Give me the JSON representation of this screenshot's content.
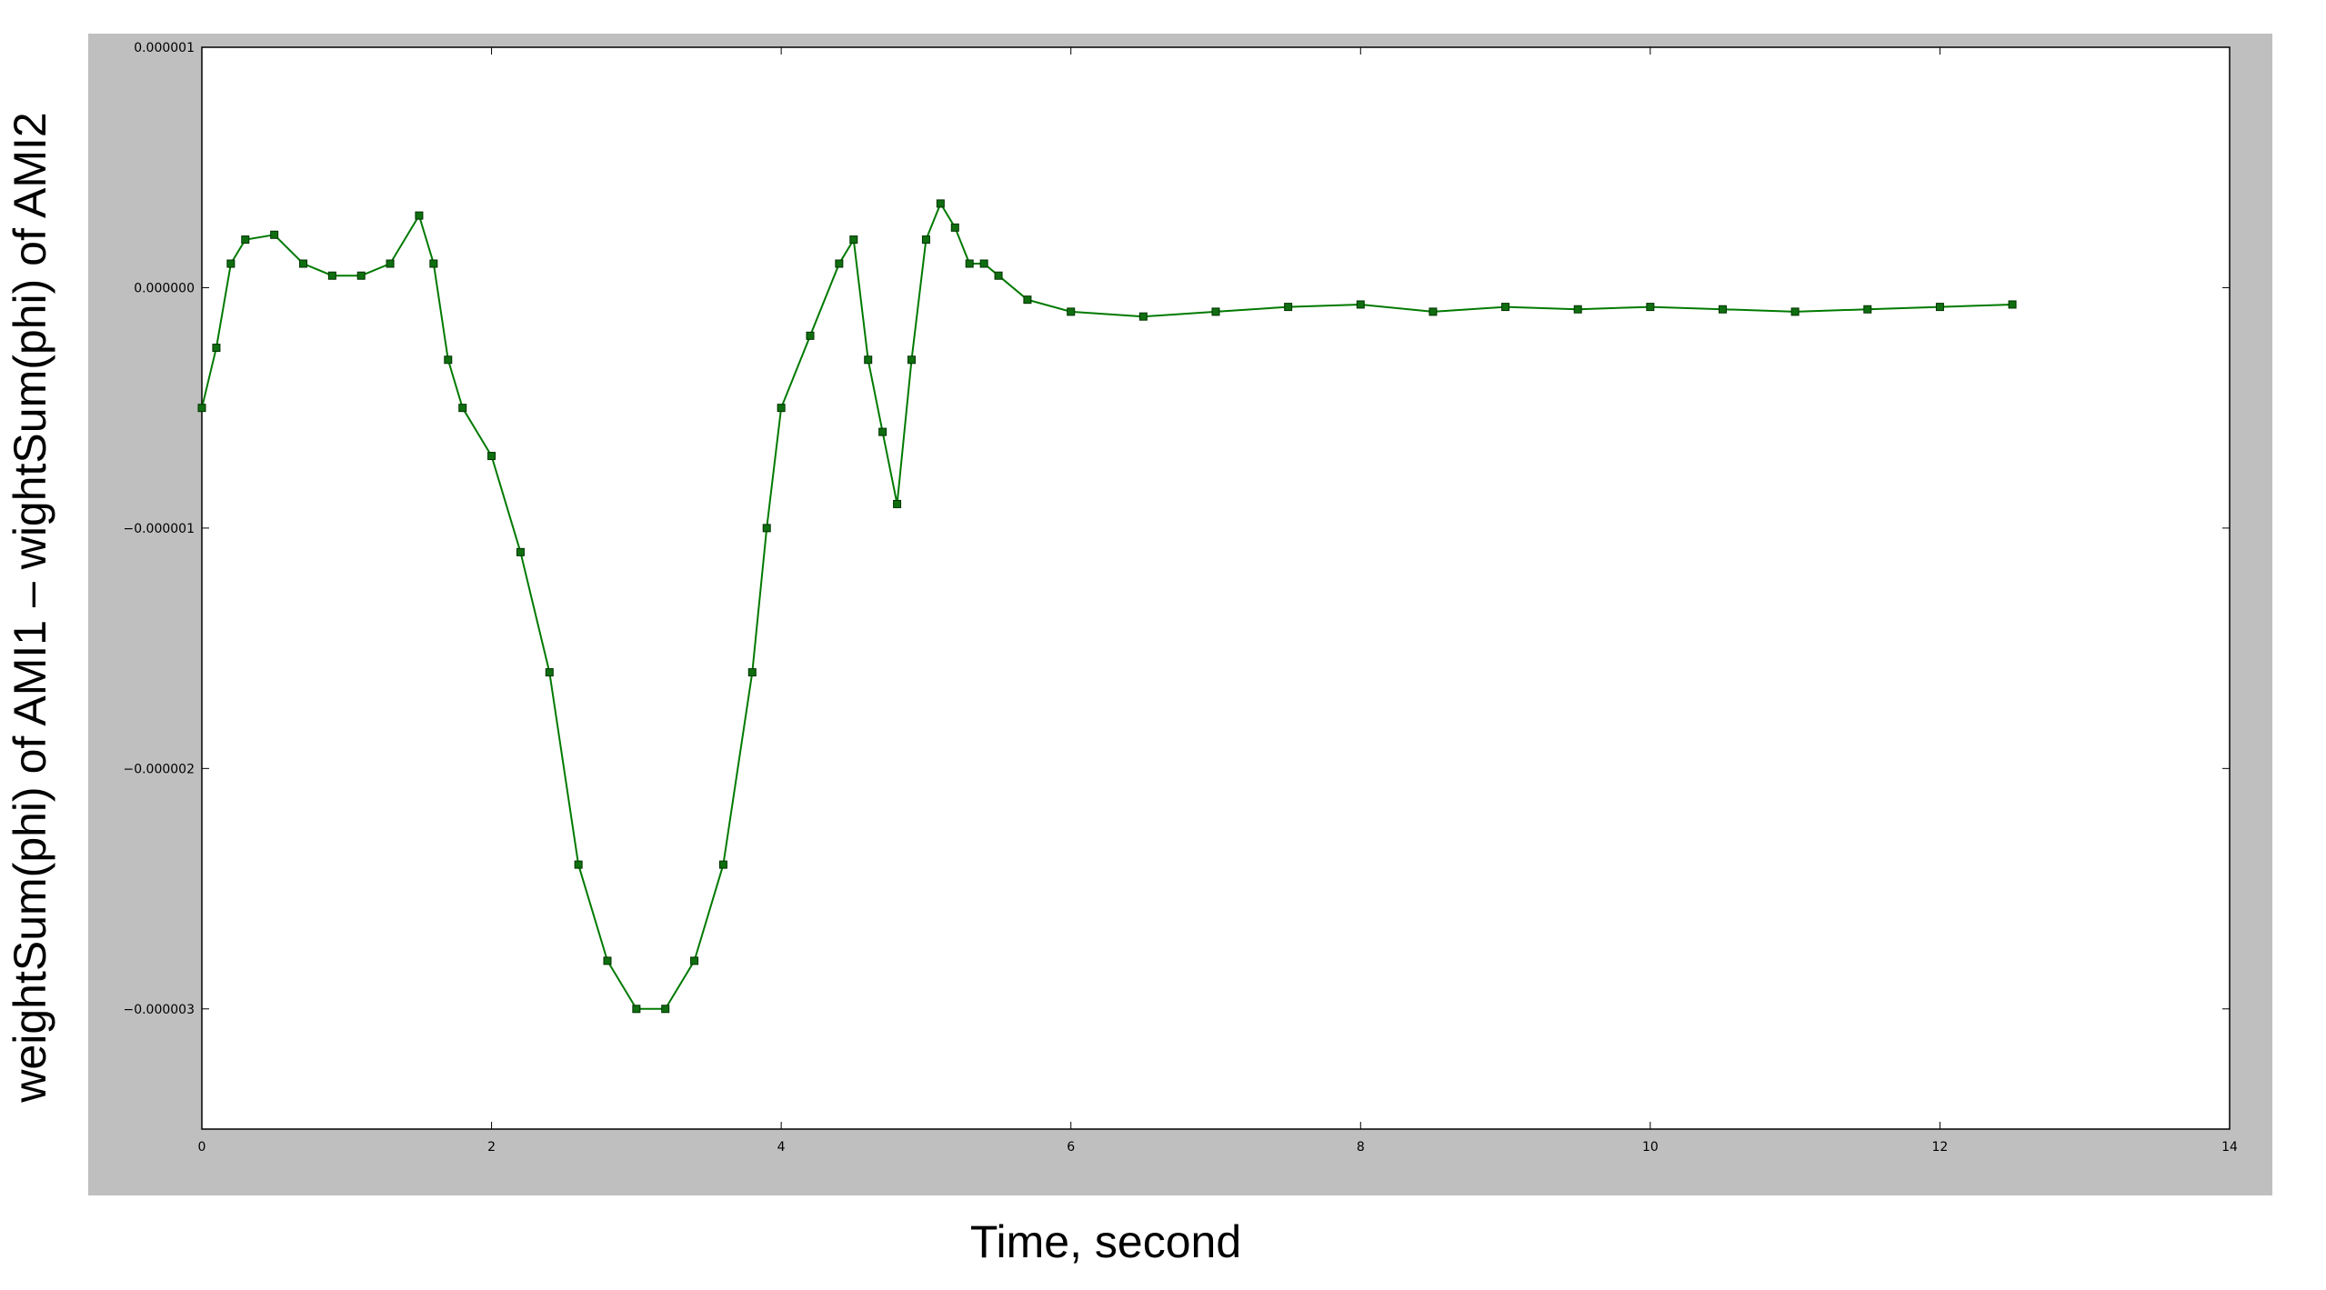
{
  "chart_data": {
    "type": "scatter",
    "title": "",
    "xlabel": "Time, second",
    "ylabel": "weightSum(phi) of AMI1 – wightSum(phi) of AMI2",
    "xlim": [
      0,
      14
    ],
    "ylim": [
      -3.5e-06,
      1e-06
    ],
    "x_ticks": [
      0,
      2,
      4,
      6,
      8,
      10,
      12,
      14
    ],
    "x_tick_labels": [
      "0",
      "2",
      "4",
      "6",
      "8",
      "10",
      "12",
      "14"
    ],
    "y_ticks": [
      1e-06,
      0,
      -1e-06,
      -2e-06,
      -3e-06
    ],
    "y_tick_labels": [
      "0.000001",
      "0.000000",
      "−0.000001",
      "−0.000002",
      "−0.000003"
    ],
    "grid": false,
    "legend": "none",
    "marker": "square",
    "line_style": "connected",
    "series": [
      {
        "color": "#007a00",
        "marker_color": "#0f6e0f",
        "x": [
          0,
          0.1,
          0.2,
          0.3,
          0.5,
          0.7,
          0.9,
          1.1,
          1.3,
          1.5,
          1.6,
          1.7,
          1.8,
          2.0,
          2.2,
          2.4,
          2.6,
          2.8,
          3.0,
          3.2,
          3.4,
          3.6,
          3.8,
          3.9,
          4.0,
          4.2,
          4.4,
          4.5,
          4.6,
          4.7,
          4.8,
          4.9,
          5.0,
          5.1,
          5.2,
          5.3,
          5.4,
          5.5,
          5.7,
          6.0,
          6.5,
          7.0,
          7.5,
          8.0,
          8.5,
          9.0,
          9.5,
          10.0,
          10.5,
          11.0,
          11.5,
          12.0,
          12.5
        ],
        "y": [
          -5e-07,
          -2.5e-07,
          1e-07,
          2e-07,
          2.2e-07,
          1e-07,
          5e-08,
          5e-08,
          1e-07,
          3e-07,
          1e-07,
          -3e-07,
          -5e-07,
          -7e-07,
          -1.1e-06,
          -1.6e-06,
          -2.4e-06,
          -2.8e-06,
          -3e-06,
          -3e-06,
          -2.8e-06,
          -2.4e-06,
          -1.6e-06,
          -1e-06,
          -5e-07,
          -2e-07,
          1e-07,
          2e-07,
          -3e-07,
          -6e-07,
          -9e-07,
          -3e-07,
          2e-07,
          3.5e-07,
          2.5e-07,
          1e-07,
          1e-07,
          5e-08,
          -5e-08,
          -1e-07,
          -1.2e-07,
          -1e-07,
          -8e-08,
          -7e-08,
          -1e-07,
          -8e-08,
          -9e-08,
          -8e-08,
          -9e-08,
          -1e-07,
          -9e-08,
          -8e-08,
          -7e-08
        ]
      }
    ]
  }
}
